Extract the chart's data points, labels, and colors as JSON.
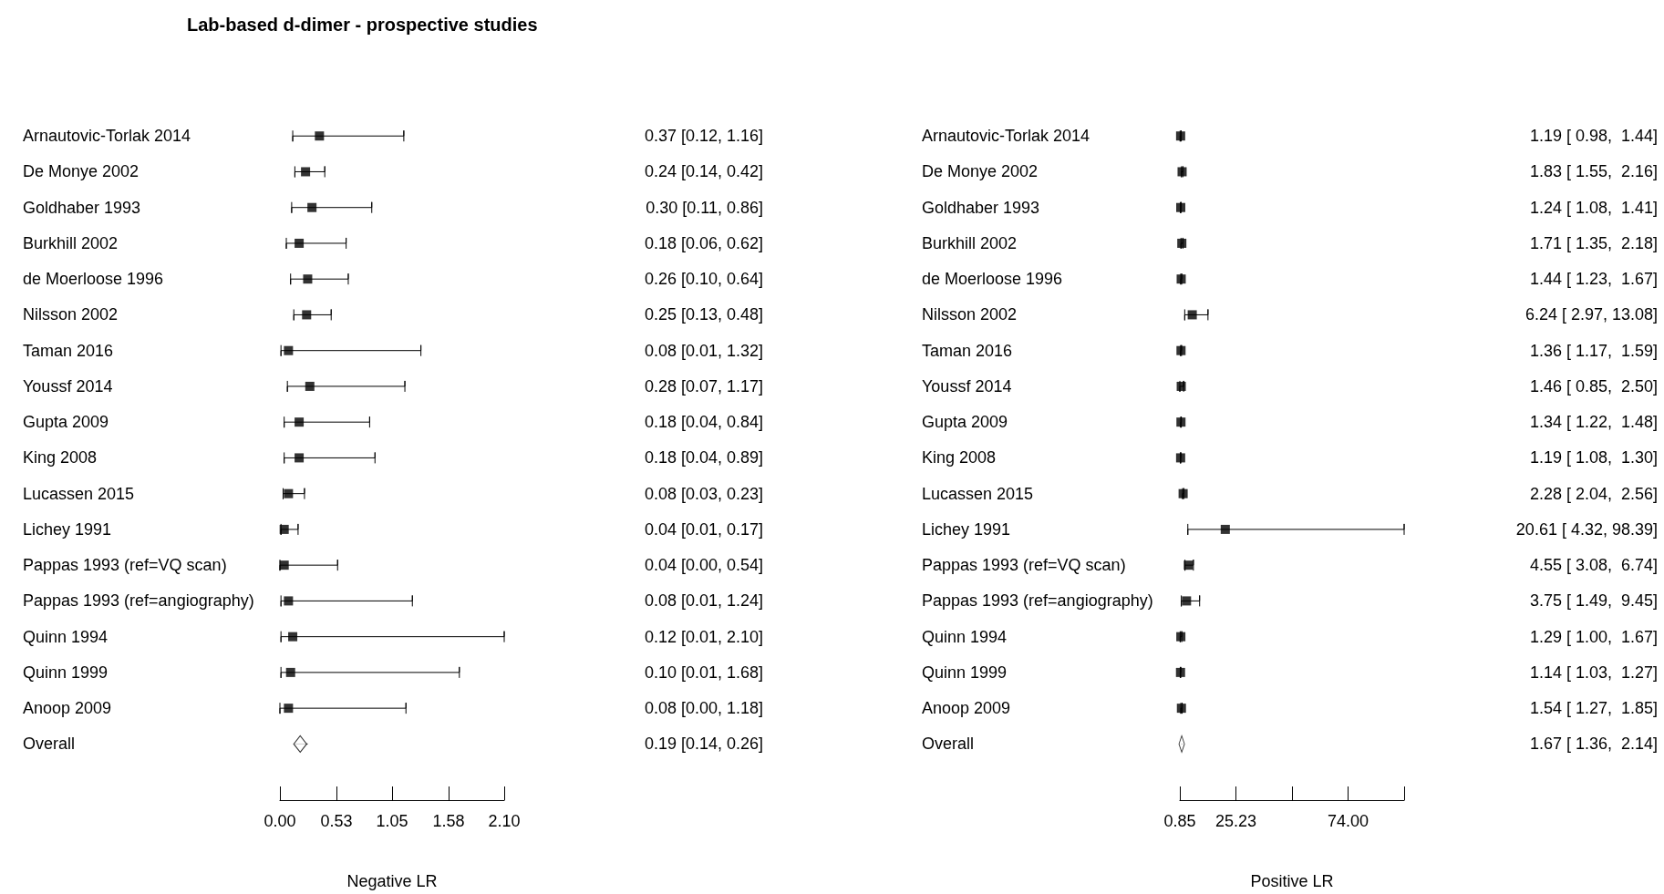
{
  "chart_data": [
    {
      "type": "scatter",
      "orientation": "horizontal",
      "title": "Lab-based d-dimer - prospective studies",
      "xlabel": "Negative LR",
      "categories": [
        "Arnautovic-Torlak 2014",
        "De Monye 2002",
        "Goldhaber 1993",
        "Burkhill 2002",
        "de Moerloose 1996",
        "Nilsson 2002",
        "Taman 2016",
        "Youssf 2014",
        "Gupta 2009",
        "King 2008",
        "Lucassen 2015",
        "Lichey 1991",
        "Pappas 1993 (ref=VQ scan)",
        "Pappas 1993 (ref=angiography)",
        "Quinn 1994",
        "Quinn 1999",
        "Anoop 2009",
        "Overall"
      ],
      "series": [
        {
          "color": "#000000",
          "marker": "square",
          "values": [
            0.37,
            0.24,
            0.3,
            0.18,
            0.26,
            0.25,
            0.08,
            0.28,
            0.18,
            0.18,
            0.08,
            0.04,
            0.04,
            0.08,
            0.12,
            0.1,
            0.08,
            null
          ],
          "errors": [
            [
              0.12,
              1.16
            ],
            [
              0.14,
              0.42
            ],
            [
              0.11,
              0.86
            ],
            [
              0.06,
              0.62
            ],
            [
              0.1,
              0.64
            ],
            [
              0.13,
              0.48
            ],
            [
              0.01,
              1.32
            ],
            [
              0.07,
              1.17
            ],
            [
              0.04,
              0.84
            ],
            [
              0.04,
              0.89
            ],
            [
              0.03,
              0.23
            ],
            [
              0.01,
              0.17
            ],
            [
              0.0,
              0.54
            ],
            [
              0.01,
              1.24
            ],
            [
              0.01,
              2.1
            ],
            [
              0.01,
              1.68
            ],
            [
              0.0,
              1.18
            ],
            null
          ]
        },
        {
          "color": "#000000",
          "marker": "diamond",
          "values": [
            null,
            null,
            null,
            null,
            null,
            null,
            null,
            null,
            null,
            null,
            null,
            null,
            null,
            null,
            null,
            null,
            null,
            0.19
          ],
          "errors": [
            null,
            null,
            null,
            null,
            null,
            null,
            null,
            null,
            null,
            null,
            null,
            null,
            null,
            null,
            null,
            null,
            null,
            [
              0.14,
              0.26
            ]
          ]
        }
      ],
      "value_labels": [
        "0.37 [0.12, 1.16]",
        "0.24 [0.14, 0.42]",
        "0.30 [0.11, 0.86]",
        "0.18 [0.06, 0.62]",
        "0.26 [0.10, 0.64]",
        "0.25 [0.13, 0.48]",
        "0.08 [0.01, 1.32]",
        "0.28 [0.07, 1.17]",
        "0.18 [0.04, 0.84]",
        "0.18 [0.04, 0.89]",
        "0.08 [0.03, 0.23]",
        "0.04 [0.01, 0.17]",
        "0.04 [0.00, 0.54]",
        "0.08 [0.01, 1.24]",
        "0.12 [0.01, 2.10]",
        "0.10 [0.01, 1.68]",
        "0.08 [0.00, 1.18]",
        "0.19 [0.14, 0.26]"
      ],
      "xlim": [
        0,
        2.1
      ],
      "xticks": [
        {
          "value": 0,
          "label": "0.00"
        },
        0.53,
        1.05,
        1.58,
        {
          "value": 2.1,
          "label": "2.10"
        }
      ]
    },
    {
      "type": "scatter",
      "orientation": "horizontal",
      "xlabel": "Positive LR",
      "categories": [
        "Arnautovic-Torlak 2014",
        "De Monye 2002",
        "Goldhaber 1993",
        "Burkhill 2002",
        "de Moerloose 1996",
        "Nilsson 2002",
        "Taman 2016",
        "Youssf 2014",
        "Gupta 2009",
        "King 2008",
        "Lucassen 2015",
        "Lichey 1991",
        "Pappas 1993 (ref=VQ scan)",
        "Pappas 1993 (ref=angiography)",
        "Quinn 1994",
        "Quinn 1999",
        "Anoop 2009",
        "Overall"
      ],
      "series": [
        {
          "color": "#000000",
          "marker": "square",
          "values": [
            1.19,
            1.83,
            1.24,
            1.71,
            1.44,
            6.24,
            1.36,
            1.46,
            1.34,
            1.19,
            2.28,
            20.61,
            4.55,
            3.75,
            1.29,
            1.14,
            1.54,
            null
          ],
          "errors": [
            [
              0.98,
              1.44
            ],
            [
              1.55,
              2.16
            ],
            [
              1.08,
              1.41
            ],
            [
              1.35,
              2.18
            ],
            [
              1.23,
              1.67
            ],
            [
              2.97,
              13.08
            ],
            [
              1.17,
              1.59
            ],
            [
              0.85,
              2.5
            ],
            [
              1.22,
              1.48
            ],
            [
              1.08,
              1.3
            ],
            [
              2.04,
              2.56
            ],
            [
              4.32,
              98.39
            ],
            [
              3.08,
              6.74
            ],
            [
              1.49,
              9.45
            ],
            [
              1.0,
              1.67
            ],
            [
              1.03,
              1.27
            ],
            [
              1.27,
              1.85
            ],
            null
          ]
        },
        {
          "color": "#000000",
          "marker": "diamond",
          "values": [
            null,
            null,
            null,
            null,
            null,
            null,
            null,
            null,
            null,
            null,
            null,
            null,
            null,
            null,
            null,
            null,
            null,
            1.67
          ],
          "errors": [
            null,
            null,
            null,
            null,
            null,
            null,
            null,
            null,
            null,
            null,
            null,
            null,
            null,
            null,
            null,
            null,
            null,
            [
              1.36,
              2.14
            ]
          ]
        }
      ],
      "value_labels": [
        "1.19 [ 0.98,  1.44]",
        "1.83 [ 1.55,  2.16]",
        "1.24 [ 1.08,  1.41]",
        "1.71 [ 1.35,  2.18]",
        "1.44 [ 1.23,  1.67]",
        "6.24 [ 2.97, 13.08]",
        "1.36 [ 1.17,  1.59]",
        "1.46 [ 0.85,  2.50]",
        "1.34 [ 1.22,  1.48]",
        "1.19 [ 1.08,  1.30]",
        "2.28 [ 2.04,  2.56]",
        "20.61 [ 4.32, 98.39]",
        "4.55 [ 3.08,  6.74]",
        "3.75 [ 1.49,  9.45]",
        "1.29 [ 1.00,  1.67]",
        "1.14 [ 1.03,  1.27]",
        "1.54 [ 1.27,  1.85]",
        "1.67 [ 1.36,  2.14]"
      ],
      "xlim": [
        0.85,
        98.39
      ],
      "xticks": [
        0.85,
        25.23,
        {
          "value": 49.62,
          "label": null
        },
        {
          "value": 74,
          "label": "74.00"
        },
        {
          "value": 98.39,
          "label": null
        }
      ]
    }
  ]
}
